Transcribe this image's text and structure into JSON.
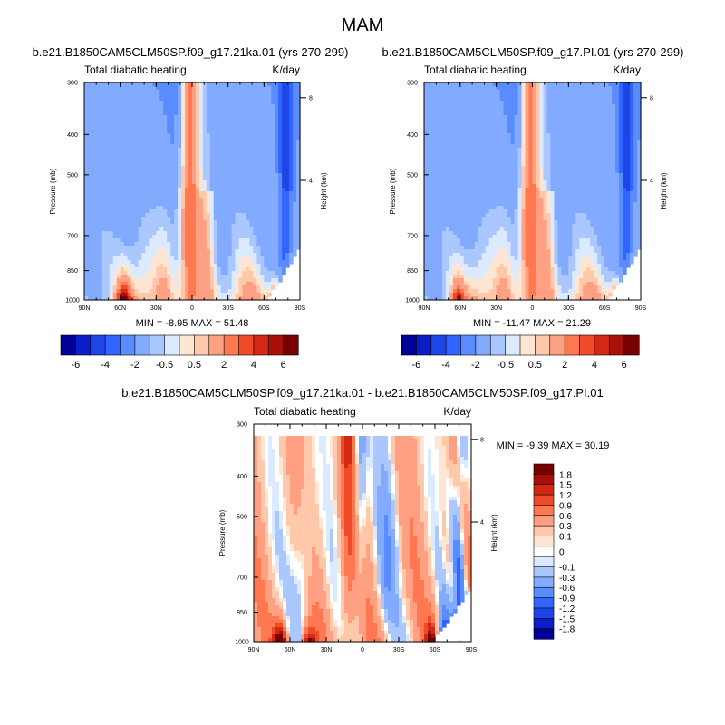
{
  "figure": {
    "title": "MAM",
    "colors": {
      "top_palette": [
        "#000096",
        "#0a1ec8",
        "#1e46e6",
        "#3264ff",
        "#5a8cff",
        "#82aaff",
        "#aac8ff",
        "#dceaff",
        "#ffe6d2",
        "#ffc8aa",
        "#ffa082",
        "#ff7850",
        "#f04b28",
        "#d22814",
        "#aa0f0a",
        "#780000"
      ],
      "diff_palette": [
        "#000096",
        "#0a1ec8",
        "#1e46e6",
        "#3264ff",
        "#5a8cff",
        "#82aaff",
        "#aac8ff",
        "#dceaff",
        "#ffffff",
        "#ffe6d2",
        "#ffc8aa",
        "#ffa082",
        "#ff7850",
        "#f04b28",
        "#d22814",
        "#aa0f0a",
        "#780000"
      ]
    }
  },
  "chart_data": [
    {
      "type": "heatmap",
      "id": "lgm",
      "title": "b.e21.B1850CAM5CLM50SP.f09_g17.21ka.01 (yrs 270-299)",
      "left_string": "Total diabatic heating",
      "right_string": "K/day",
      "xlabel": "",
      "ylabel": "Pressure (mb)",
      "y2label": "Height (km)",
      "x_ticks": [
        "90N",
        "60N",
        "30N",
        "0",
        "30S",
        "60S",
        "90S"
      ],
      "x_range": [
        90,
        -90
      ],
      "y_ticks": [
        "300",
        "400",
        "500",
        "700",
        "850",
        "1000"
      ],
      "y_range": [
        1000,
        300
      ],
      "y2_ticks": [
        "8",
        "4"
      ],
      "min_label": "MIN =  -8.95  MAX =  51.48",
      "min": -8.95,
      "max": 51.48,
      "colorbar_labels": [
        "-6",
        "-4",
        "-2",
        "-0.5",
        "0.5",
        "2",
        "4",
        "6"
      ]
    },
    {
      "type": "heatmap",
      "id": "pi",
      "title": "b.e21.B1850CAM5CLM50SP.f09_g17.PI.01 (yrs 270-299)",
      "left_string": "Total diabatic heating",
      "right_string": "K/day",
      "xlabel": "",
      "ylabel": "Pressure (mb)",
      "y2label": "Height (km)",
      "x_ticks": [
        "90N",
        "60N",
        "30N",
        "0",
        "30S",
        "60S",
        "90S"
      ],
      "x_range": [
        90,
        -90
      ],
      "y_ticks": [
        "300",
        "400",
        "500",
        "700",
        "850",
        "1000"
      ],
      "y_range": [
        1000,
        300
      ],
      "y2_ticks": [
        "8",
        "4"
      ],
      "min_label": "MIN = -11.47  MAX =  21.29",
      "min": -11.47,
      "max": 21.29,
      "colorbar_labels": [
        "-6",
        "-4",
        "-2",
        "-0.5",
        "0.5",
        "2",
        "4",
        "6"
      ]
    },
    {
      "type": "heatmap",
      "id": "diff",
      "title": "b.e21.B1850CAM5CLM50SP.f09_g17.21ka.01 - b.e21.B1850CAM5CLM50SP.f09_g17.PI.01",
      "left_string": "Total diabatic heating",
      "right_string": "K/day",
      "xlabel": "",
      "ylabel": "Pressure (mb)",
      "y2label": "Height (km)",
      "x_ticks": [
        "90N",
        "60N",
        "30N",
        "0",
        "30S",
        "60S",
        "90S"
      ],
      "x_range": [
        90,
        -90
      ],
      "y_ticks": [
        "300",
        "400",
        "500",
        "700",
        "850",
        "1000"
      ],
      "y_range": [
        1000,
        300
      ],
      "y2_ticks": [
        "8",
        "4"
      ],
      "min_label": "MIN =  -9.39  MAX =  30.19",
      "min": -9.39,
      "max": 30.19,
      "colorbar_labels": [
        "1.8",
        "1.5",
        "1.2",
        "0.9",
        "0.6",
        "0.3",
        "0.1",
        "0",
        "-0.1",
        "-0.3",
        "-0.6",
        "-0.9",
        "-1.2",
        "-1.5",
        "-1.8"
      ]
    }
  ]
}
